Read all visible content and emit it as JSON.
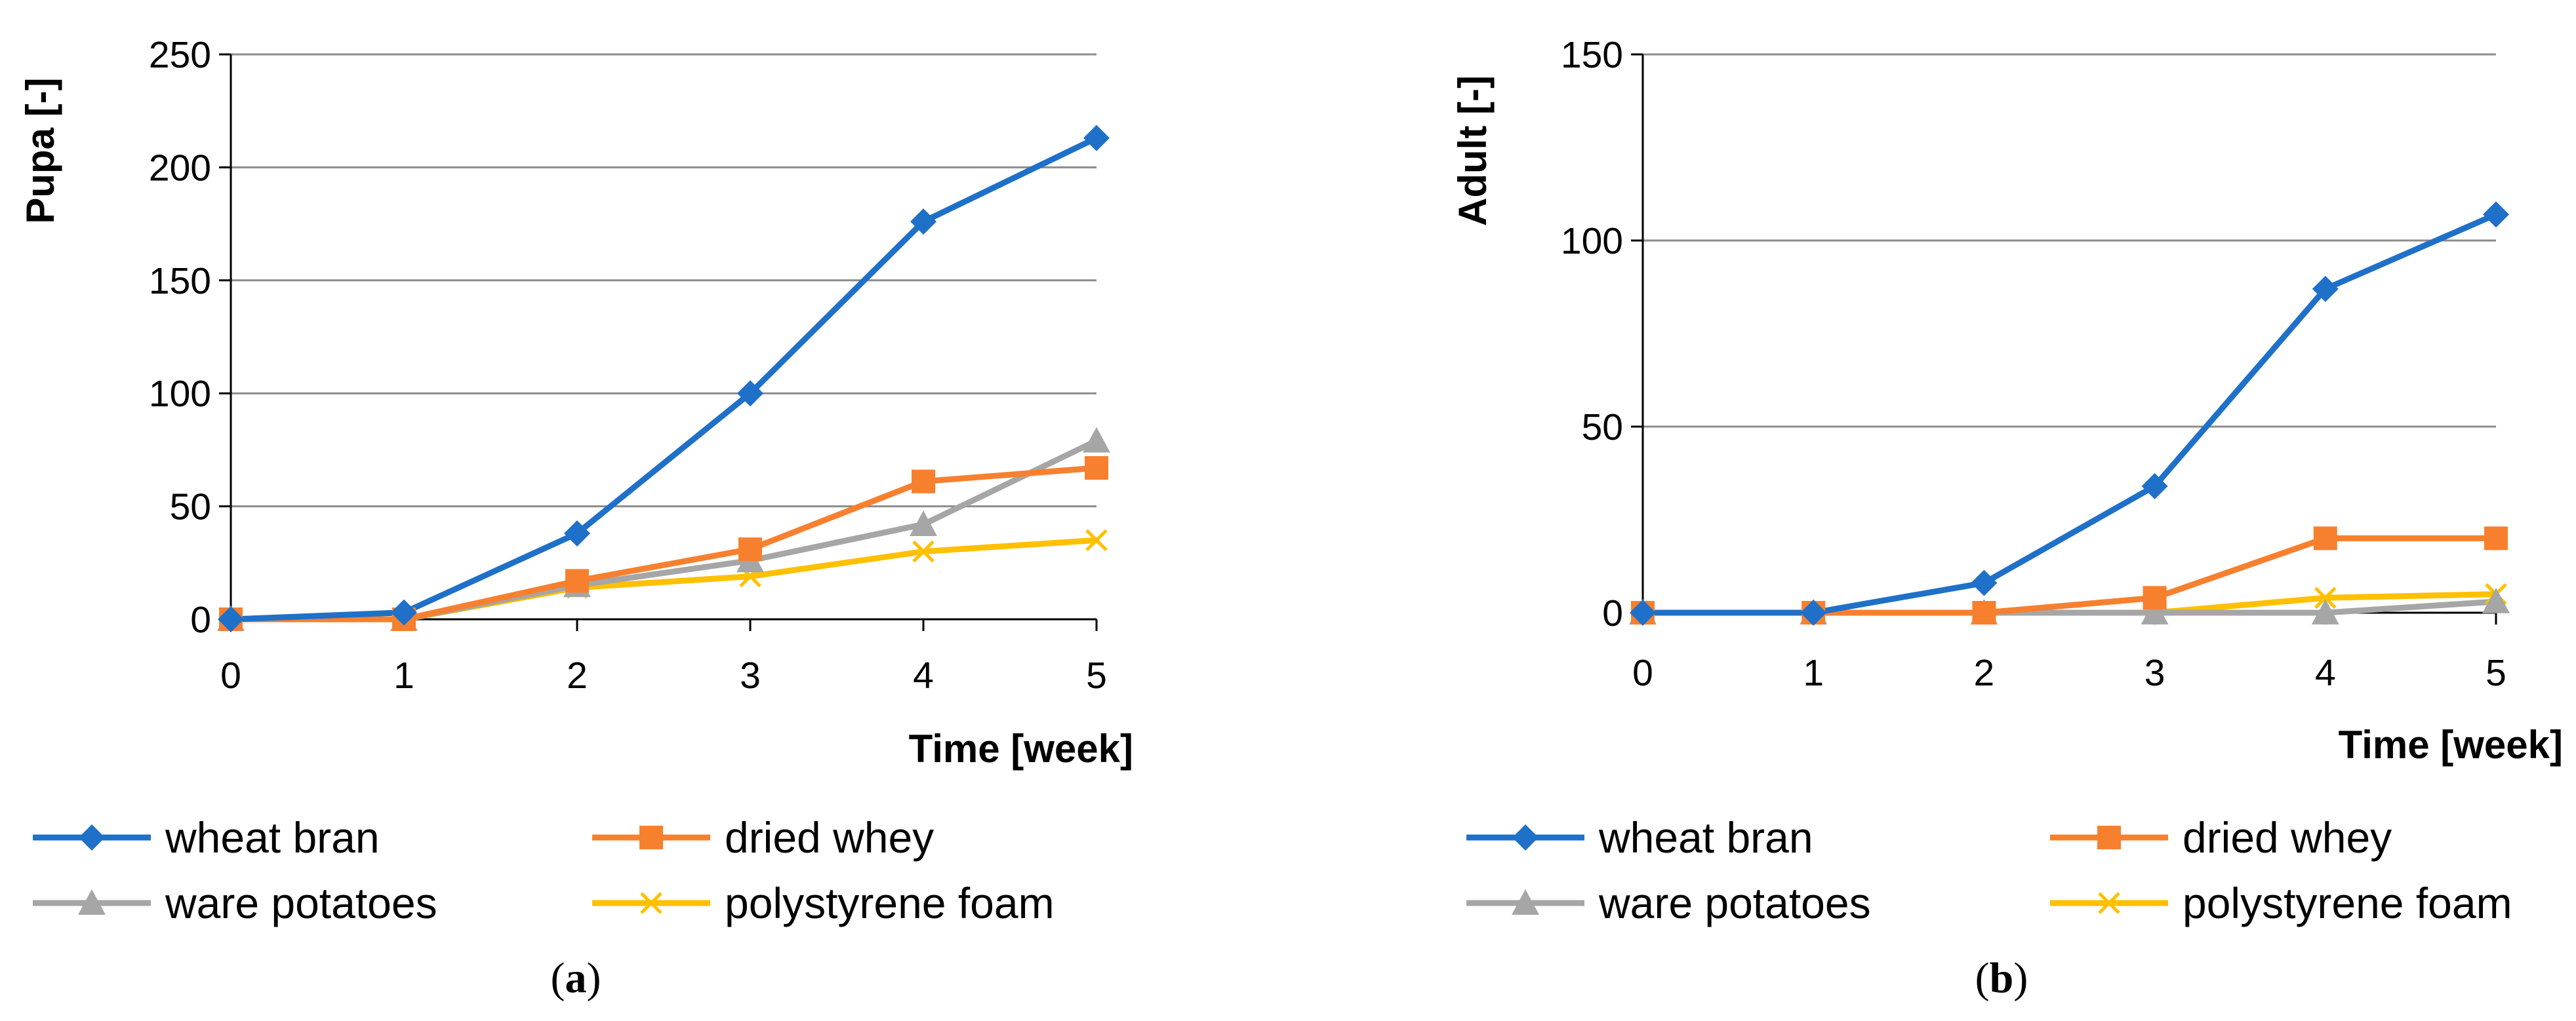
{
  "chart_data": [
    {
      "type": "line",
      "panel": "a",
      "caption_open": "(",
      "caption_letter": "a",
      "caption_close": ")",
      "xlabel": "Time [week]",
      "ylabel": "Pupa [-]",
      "ylim": [
        0,
        250
      ],
      "yticks": [
        0,
        50,
        100,
        150,
        200,
        250
      ],
      "x": [
        0,
        1,
        2,
        3,
        4,
        5
      ],
      "grid": true,
      "legend": "bottom",
      "series": [
        {
          "name": "wheat bran",
          "color": "#1F70C8",
          "marker": "diamond",
          "values": [
            0,
            3,
            38,
            100,
            176,
            213
          ]
        },
        {
          "name": "dried whey",
          "color": "#F7802F",
          "marker": "square",
          "values": [
            0,
            0,
            17,
            31,
            61,
            67
          ]
        },
        {
          "name": "ware potatoes",
          "color": "#A6A6A6",
          "marker": "triangle",
          "values": [
            0,
            0,
            15,
            26,
            42,
            79
          ]
        },
        {
          "name": "polystyrene foam",
          "color": "#FFC000",
          "marker": "x",
          "values": [
            0,
            0,
            14,
            19,
            30,
            35
          ]
        }
      ]
    },
    {
      "type": "line",
      "panel": "b",
      "caption_open": "(",
      "caption_letter": "b",
      "caption_close": ")",
      "xlabel": "Time [week]",
      "ylabel": "Adult [-]",
      "ylim": [
        0,
        150
      ],
      "yticks": [
        0,
        50,
        100,
        150
      ],
      "x": [
        0,
        1,
        2,
        3,
        4,
        5
      ],
      "grid": true,
      "legend": "bottom",
      "series": [
        {
          "name": "wheat bran",
          "color": "#1F70C8",
          "marker": "diamond",
          "values": [
            0,
            0,
            8,
            34,
            87,
            107
          ]
        },
        {
          "name": "dried whey",
          "color": "#F7802F",
          "marker": "square",
          "values": [
            0,
            0,
            0,
            4,
            20,
            20
          ]
        },
        {
          "name": "ware potatoes",
          "color": "#A6A6A6",
          "marker": "triangle",
          "values": [
            0,
            0,
            0,
            0,
            0,
            3
          ]
        },
        {
          "name": "polystyrene foam",
          "color": "#FFC000",
          "marker": "x",
          "values": [
            0,
            0,
            0,
            0,
            4,
            5
          ]
        }
      ]
    }
  ]
}
